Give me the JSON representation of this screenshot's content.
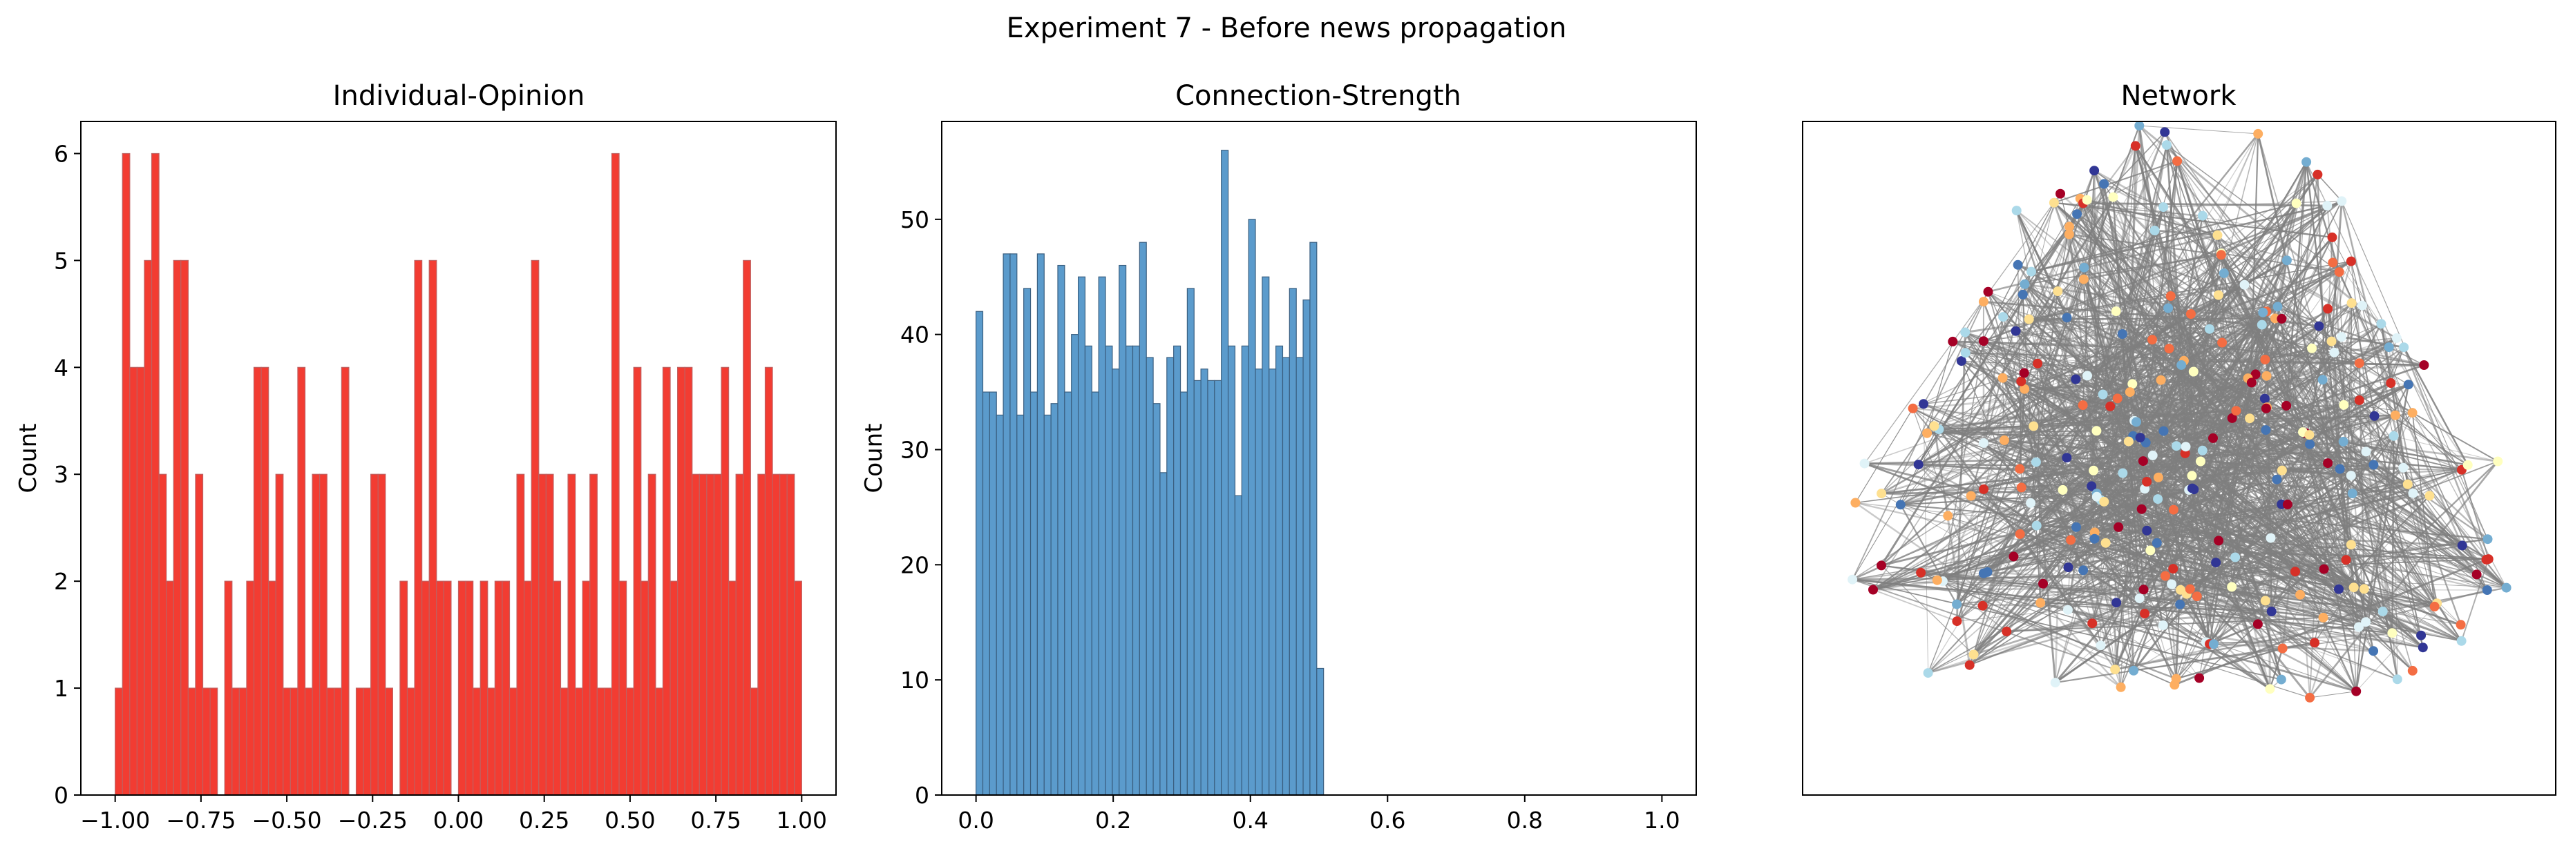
{
  "figure": {
    "suptitle": "Experiment 7 - Before news propagation"
  },
  "colors": {
    "opinion_fill": "#f23c32",
    "opinion_edge": "#c06060",
    "strength_fill": "#5b9bcc",
    "strength_edge": "#3a5f80",
    "edge": "#7f7f7f"
  },
  "chart_data": [
    {
      "type": "bar",
      "title": "Individual-Opinion",
      "xlabel": "",
      "ylabel": "Count",
      "xlim": [
        -1.1,
        1.1
      ],
      "ylim": [
        0,
        6.3
      ],
      "xticks": [
        -1.0,
        -0.75,
        -0.5,
        -0.25,
        0.0,
        0.25,
        0.5,
        0.75,
        1.0
      ],
      "xtick_labels": [
        "−1.00",
        "−0.75",
        "−0.50",
        "−0.25",
        "0.00",
        "0.25",
        "0.50",
        "0.75",
        "1.00"
      ],
      "yticks": [
        0,
        1,
        2,
        3,
        4,
        5,
        6
      ],
      "ytick_labels": [
        "0",
        "1",
        "2",
        "3",
        "4",
        "5",
        "6"
      ],
      "bin_range": [
        -1.0,
        1.0
      ],
      "values": [
        1,
        6,
        4,
        4,
        5,
        6,
        3,
        2,
        5,
        5,
        1,
        3,
        1,
        1,
        0,
        2,
        1,
        1,
        2,
        4,
        4,
        2,
        3,
        1,
        1,
        4,
        1,
        3,
        3,
        1,
        1,
        4,
        0,
        1,
        1,
        3,
        3,
        1,
        0,
        2,
        1,
        5,
        2,
        5,
        2,
        2,
        0,
        2,
        2,
        1,
        2,
        1,
        2,
        2,
        1,
        3,
        2,
        5,
        3,
        3,
        2,
        1,
        3,
        1,
        2,
        3,
        1,
        1,
        6,
        2,
        1,
        4,
        2,
        3,
        1,
        4,
        2,
        4,
        4,
        3,
        3,
        3,
        3,
        4,
        2,
        3,
        5,
        1,
        3,
        4,
        3,
        3,
        3,
        2
      ],
      "grid": false,
      "legend": "none"
    },
    {
      "type": "bar",
      "title": "Connection-Strength",
      "xlabel": "",
      "ylabel": "Count",
      "xlim": [
        -0.05,
        1.05
      ],
      "ylim": [
        0,
        58.5
      ],
      "xticks": [
        0.0,
        0.2,
        0.4,
        0.6,
        0.8,
        1.0
      ],
      "xtick_labels": [
        "0.0",
        "0.2",
        "0.4",
        "0.6",
        "0.8",
        "1.0"
      ],
      "yticks": [
        0,
        10,
        20,
        30,
        40,
        50
      ],
      "ytick_labels": [
        "0",
        "10",
        "20",
        "30",
        "40",
        "50"
      ],
      "bin_range": [
        0.0,
        0.5067
      ],
      "values": [
        42,
        35,
        35,
        33,
        47,
        47,
        33,
        44,
        35,
        47,
        33,
        34,
        46,
        35,
        40,
        45,
        39,
        35,
        45,
        39,
        37,
        46,
        39,
        39,
        48,
        38,
        34,
        28,
        38,
        39,
        35,
        44,
        36,
        37,
        36,
        36,
        56,
        39,
        26,
        39,
        50,
        37,
        45,
        37,
        39,
        38,
        44,
        38,
        43,
        48,
        11
      ],
      "grid": false,
      "legend": "none"
    }
  ],
  "network": {
    "title": "Network",
    "node_palette": [
      "#a50026",
      "#d73027",
      "#f46d43",
      "#fdae61",
      "#fee090",
      "#ffffbf",
      "#e0f3f8",
      "#abd9e9",
      "#74add1",
      "#4575b4",
      "#313695"
    ]
  }
}
